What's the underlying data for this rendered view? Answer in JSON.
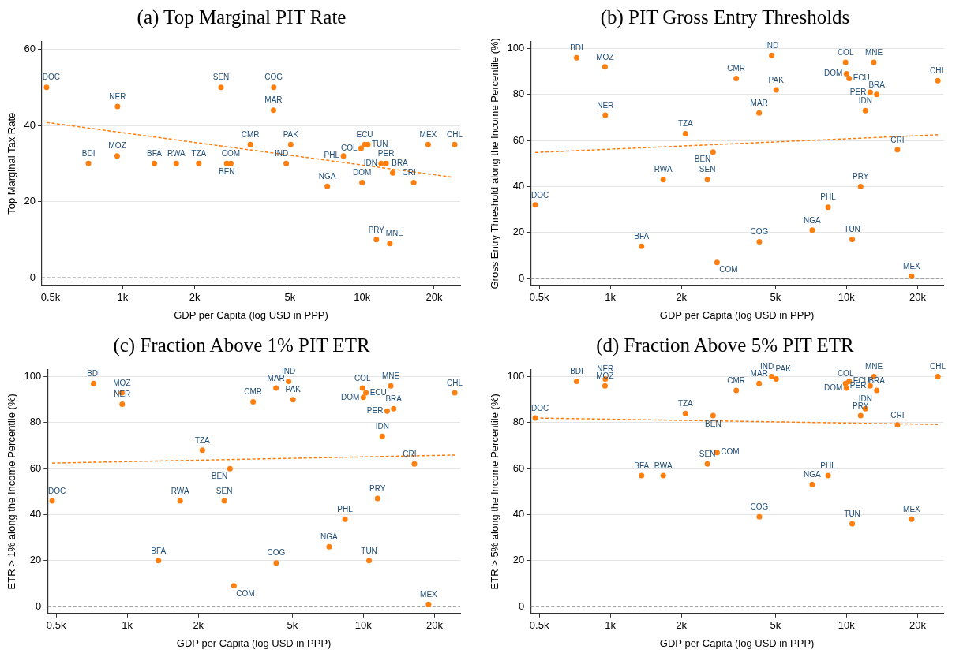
{
  "chart_data": [
    {
      "type": "scatter",
      "title": "(a) Top Marginal PIT Rate",
      "xlabel": "GDP per Capita (log USD in PPP)",
      "ylabel": "Top Marginal Tax Rate",
      "log": "x",
      "grid": "y",
      "legend": false,
      "marker": "circle",
      "xlim": [
        460,
        25700
      ],
      "xticks": [
        {
          "value": 500,
          "label": "0.5k"
        },
        {
          "value": 1000,
          "label": "1k"
        },
        {
          "value": 2000,
          "label": "2k"
        },
        {
          "value": 5000,
          "label": "5k"
        },
        {
          "value": 10000,
          "label": "10k"
        },
        {
          "value": 20000,
          "label": "20k"
        }
      ],
      "ylim": [
        -2,
        62
      ],
      "yticks": [
        0,
        20,
        40,
        60
      ],
      "x": [
        481,
        720,
        949,
        952,
        1356,
        1675,
        2080,
        2576,
        2723,
        2830,
        3413,
        4266,
        4276,
        4822,
        5037,
        7160,
        8360,
        9910,
        10000,
        10260,
        10570,
        11480,
        12020,
        12600,
        13060,
        13430,
        16440,
        18880,
        24370
      ],
      "series": [
        {
          "type": "scatter",
          "color": "#ff7f0e",
          "values": [
            50,
            30,
            32,
            45,
            30,
            30,
            30,
            50,
            30,
            30,
            35,
            44,
            50,
            30,
            35,
            24,
            32,
            34,
            25,
            35,
            35,
            10,
            30,
            30,
            9,
            27.5,
            25,
            35,
            35
          ]
        },
        {
          "type": "line",
          "color": "#ff7f0e",
          "line_style": "dashed",
          "marker": "none",
          "x": [
            481,
            23850
          ],
          "values": [
            40.8,
            26.4
          ]
        }
      ],
      "ref_lines": [
        {
          "axis": "y",
          "value": 0,
          "color": "#888888",
          "line_style": "dashed"
        }
      ],
      "annotations": [
        {
          "text": "DOC",
          "x": 481,
          "y": 50
        },
        {
          "text": "BDI",
          "x": 720,
          "y": 30
        },
        {
          "text": "MOZ",
          "x": 949,
          "y": 32
        },
        {
          "text": "NER",
          "x": 952,
          "y": 45
        },
        {
          "text": "BFA",
          "x": 1356,
          "y": 30
        },
        {
          "text": "RWA",
          "x": 1675,
          "y": 30
        },
        {
          "text": "TZA",
          "x": 2080,
          "y": 30
        },
        {
          "text": "SEN",
          "x": 2576,
          "y": 50
        },
        {
          "text": "BEN",
          "x": 2723,
          "y": 30
        },
        {
          "text": "COM",
          "x": 2830,
          "y": 30
        },
        {
          "text": "CMR",
          "x": 3413,
          "y": 35
        },
        {
          "text": "MAR",
          "x": 4266,
          "y": 44
        },
        {
          "text": "COG",
          "x": 4276,
          "y": 50
        },
        {
          "text": "IND",
          "x": 4822,
          "y": 30
        },
        {
          "text": "PAK",
          "x": 5037,
          "y": 35
        },
        {
          "text": "NGA",
          "x": 7160,
          "y": 24
        },
        {
          "text": "PHL",
          "x": 8360,
          "y": 32
        },
        {
          "text": "COL",
          "x": 9910,
          "y": 34
        },
        {
          "text": "DOM",
          "x": 10000,
          "y": 25
        },
        {
          "text": "ECU",
          "x": 10260,
          "y": 35
        },
        {
          "text": "TUN",
          "x": 10570,
          "y": 35
        },
        {
          "text": "PRY",
          "x": 11480,
          "y": 10
        },
        {
          "text": "IDN",
          "x": 12020,
          "y": 30
        },
        {
          "text": "PER",
          "x": 12600,
          "y": 30
        },
        {
          "text": "MNE",
          "x": 13060,
          "y": 9
        },
        {
          "text": "BRA",
          "x": 13430,
          "y": 27.5
        },
        {
          "text": "CRI",
          "x": 16440,
          "y": 25
        },
        {
          "text": "MEX",
          "x": 18880,
          "y": 35
        },
        {
          "text": "CHL",
          "x": 24370,
          "y": 35
        }
      ]
    },
    {
      "type": "scatter",
      "title": "(b) PIT Gross Entry Thresholds",
      "xlabel": "GDP per Capita (log USD in PPP)",
      "ylabel": "Gross Entry Threshold along the Income Percentile (%)",
      "log": "x",
      "grid": "y",
      "legend": false,
      "marker": "circle",
      "xlim": [
        460,
        25700
      ],
      "xticks": [
        {
          "value": 500,
          "label": "0.5k"
        },
        {
          "value": 1000,
          "label": "1k"
        },
        {
          "value": 2000,
          "label": "2k"
        },
        {
          "value": 5000,
          "label": "5k"
        },
        {
          "value": 10000,
          "label": "10k"
        },
        {
          "value": 20000,
          "label": "20k"
        }
      ],
      "ylim": [
        -3,
        103
      ],
      "yticks": [
        0,
        20,
        40,
        60,
        80,
        100
      ],
      "x": [
        481,
        720,
        949,
        952,
        1356,
        1675,
        2080,
        2576,
        2723,
        2830,
        3413,
        4266,
        4276,
        4822,
        5037,
        7160,
        8360,
        9910,
        10000,
        10260,
        10570,
        11480,
        12020,
        12600,
        13060,
        13430,
        16440,
        18880,
        24370
      ],
      "series": [
        {
          "type": "scatter",
          "color": "#ff7f0e",
          "values": [
            32,
            96,
            92,
            71,
            14,
            43,
            63,
            43,
            55,
            7,
            87,
            72,
            16,
            97,
            82,
            21,
            31,
            94,
            89,
            87,
            17,
            40,
            73,
            81,
            94,
            80,
            56,
            1,
            86
          ]
        },
        {
          "type": "line",
          "color": "#ff7f0e",
          "line_style": "dashed",
          "marker": "none",
          "x": [
            481,
            24370
          ],
          "values": [
            54.8,
            62.5
          ]
        }
      ],
      "ref_lines": [
        {
          "axis": "y",
          "value": 0,
          "color": "#888888",
          "line_style": "dashed"
        }
      ],
      "annotations": [
        {
          "text": "DOC",
          "x": 481,
          "y": 32
        },
        {
          "text": "BDI",
          "x": 720,
          "y": 96
        },
        {
          "text": "MOZ",
          "x": 949,
          "y": 92
        },
        {
          "text": "NER",
          "x": 952,
          "y": 71
        },
        {
          "text": "BFA",
          "x": 1356,
          "y": 14
        },
        {
          "text": "RWA",
          "x": 1675,
          "y": 43
        },
        {
          "text": "TZA",
          "x": 2080,
          "y": 63
        },
        {
          "text": "SEN",
          "x": 2576,
          "y": 43
        },
        {
          "text": "BEN",
          "x": 2723,
          "y": 55
        },
        {
          "text": "COM",
          "x": 2830,
          "y": 7
        },
        {
          "text": "CMR",
          "x": 3413,
          "y": 87
        },
        {
          "text": "MAR",
          "x": 4266,
          "y": 72
        },
        {
          "text": "COG",
          "x": 4276,
          "y": 16
        },
        {
          "text": "IND",
          "x": 4822,
          "y": 97
        },
        {
          "text": "PAK",
          "x": 5037,
          "y": 82
        },
        {
          "text": "NGA",
          "x": 7160,
          "y": 21
        },
        {
          "text": "PHL",
          "x": 8360,
          "y": 31
        },
        {
          "text": "COL",
          "x": 9910,
          "y": 94
        },
        {
          "text": "DOM",
          "x": 10000,
          "y": 89
        },
        {
          "text": "ECU",
          "x": 10260,
          "y": 87
        },
        {
          "text": "TUN",
          "x": 10570,
          "y": 17
        },
        {
          "text": "PRY",
          "x": 11480,
          "y": 40
        },
        {
          "text": "IDN",
          "x": 12020,
          "y": 73
        },
        {
          "text": "PER",
          "x": 12600,
          "y": 81
        },
        {
          "text": "MNE",
          "x": 13060,
          "y": 94
        },
        {
          "text": "BRA",
          "x": 13430,
          "y": 80
        },
        {
          "text": "CRI",
          "x": 16440,
          "y": 56
        },
        {
          "text": "MEX",
          "x": 18880,
          "y": 1
        },
        {
          "text": "CHL",
          "x": 24370,
          "y": 86
        }
      ]
    },
    {
      "type": "scatter",
      "title": "(c) Fraction Above 1% PIT ETR",
      "xlabel": "GDP per Capita (log USD in PPP)",
      "ylabel": "ETR > 1% along the Income Percentile (%)",
      "log": "x",
      "grid": "y",
      "legend": false,
      "marker": "circle",
      "xlim": [
        460,
        25700
      ],
      "xticks": [
        {
          "value": 500,
          "label": "0.5k"
        },
        {
          "value": 1000,
          "label": "1k"
        },
        {
          "value": 2000,
          "label": "2k"
        },
        {
          "value": 5000,
          "label": "5k"
        },
        {
          "value": 10000,
          "label": "10k"
        },
        {
          "value": 20000,
          "label": "20k"
        }
      ],
      "ylim": [
        -3,
        103
      ],
      "yticks": [
        0,
        20,
        40,
        60,
        80,
        100
      ],
      "x": [
        481,
        720,
        949,
        952,
        1356,
        1675,
        2080,
        2576,
        2723,
        2830,
        3413,
        4266,
        4276,
        4822,
        5037,
        7160,
        8360,
        9910,
        10000,
        10260,
        10570,
        11480,
        12020,
        12600,
        13060,
        13430,
        16440,
        18880,
        24370
      ],
      "series": [
        {
          "type": "scatter",
          "color": "#ff7f0e",
          "values": [
            46,
            97,
            93,
            88,
            20,
            46,
            68,
            46,
            60,
            9,
            89,
            95,
            19,
            98,
            90,
            26,
            38,
            95,
            91,
            93,
            20,
            47,
            74,
            85,
            96,
            86,
            62,
            1,
            93
          ]
        },
        {
          "type": "line",
          "color": "#ff7f0e",
          "line_style": "dashed",
          "marker": "none",
          "x": [
            481,
            24370
          ],
          "values": [
            62.4,
            65.9
          ]
        }
      ],
      "ref_lines": [
        {
          "axis": "y",
          "value": 0,
          "color": "#888888",
          "line_style": "dashed"
        }
      ],
      "annotations": [
        {
          "text": "DOC",
          "x": 481,
          "y": 46
        },
        {
          "text": "BDI",
          "x": 720,
          "y": 97
        },
        {
          "text": "MOZ",
          "x": 949,
          "y": 93
        },
        {
          "text": "NER",
          "x": 952,
          "y": 88
        },
        {
          "text": "BFA",
          "x": 1356,
          "y": 20
        },
        {
          "text": "RWA",
          "x": 1675,
          "y": 46
        },
        {
          "text": "TZA",
          "x": 2080,
          "y": 68
        },
        {
          "text": "SEN",
          "x": 2576,
          "y": 46
        },
        {
          "text": "BEN",
          "x": 2723,
          "y": 60
        },
        {
          "text": "COM",
          "x": 2830,
          "y": 9
        },
        {
          "text": "CMR",
          "x": 3413,
          "y": 89
        },
        {
          "text": "MAR",
          "x": 4266,
          "y": 95
        },
        {
          "text": "COG",
          "x": 4276,
          "y": 19
        },
        {
          "text": "IND",
          "x": 4822,
          "y": 98
        },
        {
          "text": "PAK",
          "x": 5037,
          "y": 90
        },
        {
          "text": "NGA",
          "x": 7160,
          "y": 26
        },
        {
          "text": "PHL",
          "x": 8360,
          "y": 38
        },
        {
          "text": "COL",
          "x": 9910,
          "y": 95
        },
        {
          "text": "DOM",
          "x": 10000,
          "y": 91
        },
        {
          "text": "ECU",
          "x": 10260,
          "y": 93
        },
        {
          "text": "TUN",
          "x": 10570,
          "y": 20
        },
        {
          "text": "PRY",
          "x": 11480,
          "y": 47
        },
        {
          "text": "IDN",
          "x": 12020,
          "y": 74
        },
        {
          "text": "PER",
          "x": 12600,
          "y": 85
        },
        {
          "text": "MNE",
          "x": 13060,
          "y": 96
        },
        {
          "text": "BRA",
          "x": 13430,
          "y": 86
        },
        {
          "text": "CRI",
          "x": 16440,
          "y": 62
        },
        {
          "text": "MEX",
          "x": 18880,
          "y": 1
        },
        {
          "text": "CHL",
          "x": 24370,
          "y": 93
        }
      ]
    },
    {
      "type": "scatter",
      "title": "(d) Fraction Above 5% PIT ETR",
      "xlabel": "GDP per Capita (log USD in PPP)",
      "ylabel": "ETR > 5% along the Income Percentile (%)",
      "log": "x",
      "grid": "y",
      "legend": false,
      "marker": "circle",
      "xlim": [
        460,
        25700
      ],
      "xticks": [
        {
          "value": 500,
          "label": "0.5k"
        },
        {
          "value": 1000,
          "label": "1k"
        },
        {
          "value": 2000,
          "label": "2k"
        },
        {
          "value": 5000,
          "label": "5k"
        },
        {
          "value": 10000,
          "label": "10k"
        },
        {
          "value": 20000,
          "label": "20k"
        }
      ],
      "ylim": [
        -3,
        103
      ],
      "yticks": [
        0,
        20,
        40,
        60,
        80,
        100
      ],
      "x": [
        481,
        720,
        949,
        952,
        1356,
        1675,
        2080,
        2576,
        2723,
        2830,
        3413,
        4266,
        4276,
        4822,
        5037,
        7160,
        8360,
        9910,
        10000,
        10260,
        10570,
        11480,
        12020,
        12600,
        13060,
        13430,
        16440,
        18880,
        24370
      ],
      "series": [
        {
          "type": "scatter",
          "color": "#ff7f0e",
          "values": [
            82,
            98,
            96,
            99,
            57,
            57,
            84,
            62,
            83,
            67,
            94,
            97,
            39,
            100,
            99,
            53,
            57,
            97,
            95,
            98,
            36,
            83,
            86,
            96,
            100,
            94,
            79,
            38,
            100
          ]
        },
        {
          "type": "line",
          "color": "#ff7f0e",
          "line_style": "dashed",
          "marker": "none",
          "x": [
            481,
            24370
          ],
          "values": [
            82,
            79.2
          ]
        }
      ],
      "ref_lines": [
        {
          "axis": "y",
          "value": 0,
          "color": "#888888",
          "line_style": "dashed"
        }
      ],
      "annotations": [
        {
          "text": "DOC",
          "x": 481,
          "y": 82
        },
        {
          "text": "BDI",
          "x": 720,
          "y": 98
        },
        {
          "text": "MOZ",
          "x": 949,
          "y": 96
        },
        {
          "text": "NER",
          "x": 952,
          "y": 99
        },
        {
          "text": "BFA",
          "x": 1356,
          "y": 57
        },
        {
          "text": "RWA",
          "x": 1675,
          "y": 57
        },
        {
          "text": "TZA",
          "x": 2080,
          "y": 84
        },
        {
          "text": "SEN",
          "x": 2576,
          "y": 62
        },
        {
          "text": "BEN",
          "x": 2723,
          "y": 83
        },
        {
          "text": "COM",
          "x": 2830,
          "y": 67
        },
        {
          "text": "CMR",
          "x": 3413,
          "y": 94
        },
        {
          "text": "MAR",
          "x": 4266,
          "y": 97
        },
        {
          "text": "COG",
          "x": 4276,
          "y": 39
        },
        {
          "text": "IND",
          "x": 4822,
          "y": 100
        },
        {
          "text": "PAK",
          "x": 5037,
          "y": 99
        },
        {
          "text": "NGA",
          "x": 7160,
          "y": 53
        },
        {
          "text": "PHL",
          "x": 8360,
          "y": 57
        },
        {
          "text": "COL",
          "x": 9910,
          "y": 97
        },
        {
          "text": "DOM",
          "x": 10000,
          "y": 95
        },
        {
          "text": "ECU",
          "x": 10260,
          "y": 98
        },
        {
          "text": "TUN",
          "x": 10570,
          "y": 36
        },
        {
          "text": "PRY",
          "x": 11480,
          "y": 83
        },
        {
          "text": "IDN",
          "x": 12020,
          "y": 86
        },
        {
          "text": "PER",
          "x": 12600,
          "y": 96
        },
        {
          "text": "MNE",
          "x": 13060,
          "y": 100
        },
        {
          "text": "BRA",
          "x": 13430,
          "y": 94
        },
        {
          "text": "CRI",
          "x": 16440,
          "y": 79
        },
        {
          "text": "MEX",
          "x": 18880,
          "y": 38
        },
        {
          "text": "CHL",
          "x": 24370,
          "y": 100
        }
      ]
    }
  ]
}
